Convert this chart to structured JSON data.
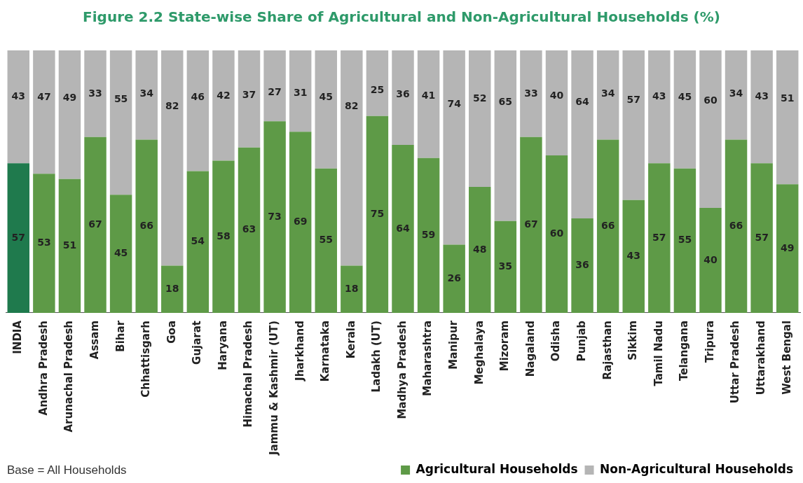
{
  "chart_data": {
    "type": "bar",
    "title": "Figure 2.2 State-wise Share of Agricultural and Non-Agricultural Households (%)",
    "categories": [
      "INDIA",
      "Andhra Pradesh",
      "Arunachal Pradesh",
      "Assam",
      "Bihar",
      "Chhattisgarh",
      "Goa",
      "Gujarat",
      "Haryana",
      "Himachal Pradesh",
      "Jammu & Kashmir (UT)",
      "Jharkhand",
      "Karnataka",
      "Kerala",
      "Ladakh (UT)",
      "Madhya Pradesh",
      "Maharashtra",
      "Manipur",
      "Meghalaya",
      "Mizoram",
      "Nagaland",
      "Odisha",
      "Punjab",
      "Rajasthan",
      "Sikkim",
      "Tamil Nadu",
      "Telangana",
      "Tripura",
      "Uttar Pradesh",
      "Uttarakhand",
      "West Bengal"
    ],
    "series": [
      {
        "name": "Agricultural Households",
        "color": "#5e9a47",
        "colors": [
          "#1f7a4d",
          "#5e9a47",
          "#5e9a47",
          "#5e9a47",
          "#5e9a47",
          "#5e9a47",
          "#5e9a47",
          "#5e9a47",
          "#5e9a47",
          "#5e9a47",
          "#5e9a47",
          "#5e9a47",
          "#5e9a47",
          "#5e9a47",
          "#5e9a47",
          "#5e9a47",
          "#5e9a47",
          "#5e9a47",
          "#5e9a47",
          "#5e9a47",
          "#5e9a47",
          "#5e9a47",
          "#5e9a47",
          "#5e9a47",
          "#5e9a47",
          "#5e9a47",
          "#5e9a47",
          "#5e9a47",
          "#5e9a47",
          "#5e9a47",
          "#5e9a47"
        ],
        "values": [
          57,
          53,
          51,
          67,
          45,
          66,
          18,
          54,
          58,
          63,
          73,
          69,
          55,
          18,
          75,
          64,
          59,
          26,
          48,
          35,
          67,
          60,
          36,
          66,
          43,
          57,
          55,
          40,
          66,
          57,
          49
        ]
      },
      {
        "name": "Non-Agricultural Households",
        "color": "#b5b5b5",
        "values": [
          43,
          47,
          49,
          33,
          55,
          34,
          82,
          46,
          42,
          37,
          27,
          31,
          45,
          82,
          25,
          36,
          41,
          74,
          52,
          65,
          33,
          40,
          64,
          34,
          57,
          43,
          45,
          60,
          34,
          43,
          51
        ]
      }
    ],
    "stacked": true,
    "ylim": [
      0,
      100
    ],
    "data_labels": true,
    "legend": "bottom right",
    "grid": false,
    "annotations": [
      "Base = All Households"
    ]
  }
}
